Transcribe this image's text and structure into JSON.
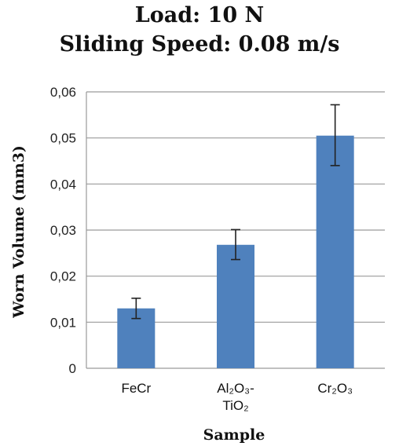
{
  "chart_data": {
    "type": "bar",
    "title": "Load: 10 N",
    "subtitle": "Sliding  Speed: 0.08 m/s",
    "xlabel": "Sample",
    "ylabel": "Worn Volume (mm3)",
    "categories": [
      "FeCr",
      "Al2O3-TiO2",
      "Cr2O3"
    ],
    "category_labels": [
      [
        "FeCr"
      ],
      [
        "Al₂O₃-",
        "TiO₂"
      ],
      [
        "Cr₂O₃"
      ]
    ],
    "values": [
      0.013,
      0.0268,
      0.0505
    ],
    "error_low": [
      0.0108,
      0.0236,
      0.044
    ],
    "error_high": [
      0.0152,
      0.0301,
      0.0572
    ],
    "ylim": [
      0,
      0.06
    ],
    "yticks": [
      0,
      0.01,
      0.02,
      0.03,
      0.04,
      0.05,
      0.06
    ],
    "ytick_labels": [
      "0",
      "0,01",
      "0,02",
      "0,03",
      "0,04",
      "0,05",
      "0,06"
    ],
    "grid": true,
    "bar_color": "#4f81bd",
    "grid_color": "#9a9a9a"
  }
}
